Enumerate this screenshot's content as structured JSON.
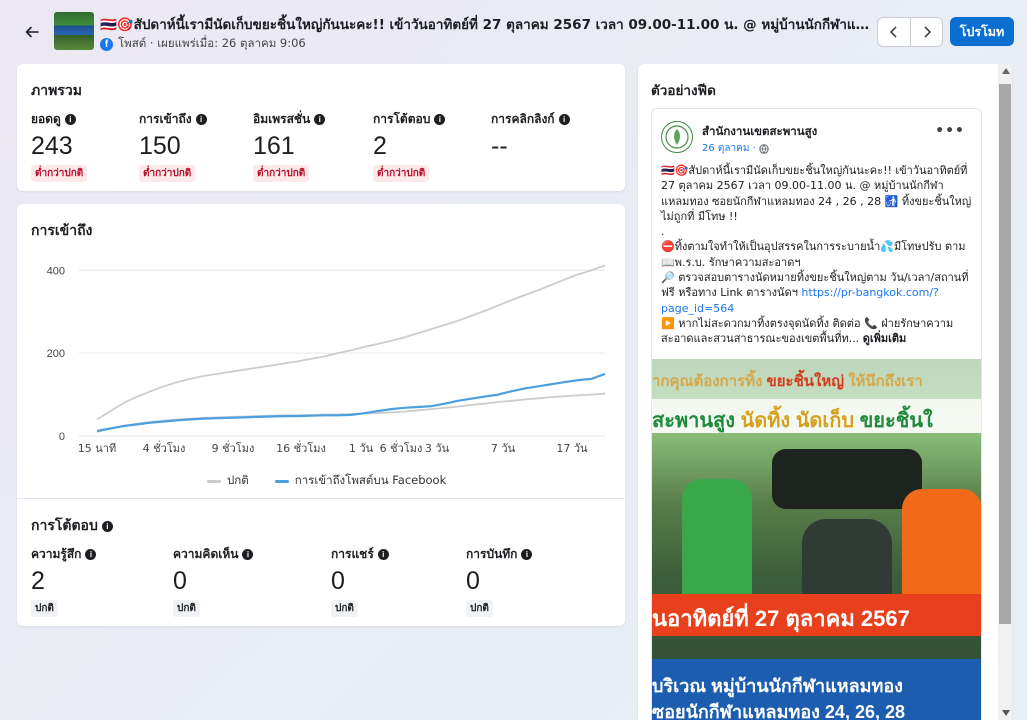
{
  "header": {
    "title": "🇹🇭🎯สัปดาห์นี้เรามีนัดเก็บขยะชิ้นใหญ่กันนะคะ!! เข้าวันอาทิตย์ที่ 27 ตุลาคม 2567 เวลา 09.00-11.00 น. @ หมู่บ้านนักกีฬาแหลมท...",
    "subtitle": "โพสต์ · เผยแพร่เมื่อ: 26 ตุลาคม 9:06",
    "promote_label": "โปรโมท",
    "icons": {
      "back": "back-arrow-icon",
      "prev": "chevron-left-icon",
      "next": "chevron-right-icon",
      "platform": "facebook-icon"
    }
  },
  "overview": {
    "title": "ภาพรวม",
    "metrics": [
      {
        "label": "ยอดดู",
        "value": "243",
        "status": "ต่ำกว่าปกติ"
      },
      {
        "label": "การเข้าถึง",
        "value": "150",
        "status": "ต่ำกว่าปกติ"
      },
      {
        "label": "อิมเพรสชั่น",
        "value": "161",
        "status": "ต่ำกว่าปกติ"
      },
      {
        "label": "การโต้ตอบ",
        "value": "2",
        "status": "ต่ำกว่าปกติ"
      },
      {
        "label": "การคลิกลิงก์",
        "value": "--",
        "status": ""
      }
    ]
  },
  "reach": {
    "title": "การเข้าถึง"
  },
  "chart_data": {
    "type": "line",
    "title": "การเข้าถึง",
    "xlabel": "",
    "ylabel": "",
    "ylim": [
      0,
      420
    ],
    "yticks": [
      0,
      200,
      400
    ],
    "x_tick_labels": [
      "15 นาที",
      "4 ชั่วโมง",
      "9 ชั่วโมง",
      "16 ชั่วโมง",
      "1 วัน",
      "6 ชั่วโมง",
      "3 วัน",
      "7 วัน",
      "17 วัน"
    ],
    "grid": true,
    "legend_position": "bottom",
    "colors": {
      "normal": "#cccccc",
      "post": "#4a9fe0"
    },
    "series": [
      {
        "name": "ปกติ",
        "values": [
          40,
          60,
          80,
          95,
          108,
          120,
          130,
          138,
          145,
          150,
          155,
          160,
          165,
          170,
          175,
          180,
          186,
          192,
          200,
          207,
          215,
          222,
          230,
          238,
          248,
          258,
          268,
          278,
          290,
          302,
          315,
          328,
          340,
          352,
          365,
          378,
          390,
          400,
          412
        ]
      },
      {
        "name": "",
        "values": [
          10,
          18,
          25,
          30,
          34,
          37,
          40,
          42,
          44,
          45,
          46,
          47,
          48,
          49,
          50,
          50,
          51,
          52,
          52,
          53,
          54,
          55,
          57,
          59,
          62,
          65,
          68,
          71,
          75,
          78,
          82,
          85,
          88,
          91,
          94,
          96,
          98,
          100,
          102
        ]
      },
      {
        "name": "การเข้าถึงโพสต์บน Facebook",
        "values": [
          12,
          18,
          24,
          28,
          32,
          35,
          38,
          40,
          42,
          43,
          44,
          45,
          46,
          47,
          48,
          48,
          49,
          50,
          50,
          51,
          55,
          60,
          65,
          68,
          70,
          72,
          78,
          85,
          90,
          95,
          100,
          108,
          115,
          120,
          125,
          130,
          135,
          138,
          150
        ]
      }
    ]
  },
  "engagement": {
    "title": "การโต้ตอบ",
    "metrics": [
      {
        "label": "ความรู้สึก",
        "value": "2",
        "status": "ปกติ"
      },
      {
        "label": "ความคิดเห็น",
        "value": "0",
        "status": "ปกติ"
      },
      {
        "label": "การแชร์",
        "value": "0",
        "status": "ปกติ"
      },
      {
        "label": "การบันทึก",
        "value": "0",
        "status": "ปกติ"
      }
    ]
  },
  "feed": {
    "title": "ตัวอย่างฟีด",
    "page_name": "สำนักงานเขตสะพานสูง",
    "date": "26 ตุลาคม ·",
    "more_label": "•••",
    "body": [
      "🇹🇭🎯สัปดาห์นี้เรามีนัดเก็บขยะชิ้นใหญ่กันนะคะ!! เข้าวันอาทิตย์ที่ 27 ตุลาคม 2567 เวลา 09.00-11.00 น. @ หมู่บ้านนักกีฬาแหลมทอง ซอยนักกีฬาแหลมทอง 24 , 26 , 28 🚮 ทิ้งขยะชิ้นใหญ่ไม่ถูกที่ มีโทษ !!",
      ".",
      "⛔ทิ้งตามใจทำให้เป็นอุปสรรคในการระบายน้ำ💦มีโทษปรับ ตาม📖พ.ร.บ. รักษาความสะอาดฯ",
      "🔎 ตรวจสอบตารางนัดหมายทิ้งขยะชิ้นใหญ่ตาม วัน/เวลา/สถานที่ ฟรี หรือทาง Link ตารางนัดฯ"
    ],
    "link": "https://pr-bangkok.com/?page_id=564",
    "body_last": "▶️ หากไม่สะดวกมาทิ้งตรงจุดนัดทิ้ง ติดต่อ 📞 ฝ่ายรักษาความสะอาดและสวนสาธารณะของเขตพื้นที่ท...",
    "see_more": "ดูเพิ่มเติม",
    "image_text": {
      "line1a": "ากคุณต้องการทิ้ง",
      "line1b": "ขยะชิ้นใหญ่",
      "line1c": "ให้นึกถึงเรา",
      "line2a": "สะพานสูง",
      "line2b": "นัดทิ้ง นัดเก็บ",
      "line2c": "ขยะชิ้นใ",
      "line3": "นอาทิตย์ที่ 27 ตุลาคม 2567",
      "line4": "บริเวณ หมู่บ้านนักกีฬาแหลมทอง",
      "line5": "ซอยนักกีฬาแหลมทอง 24, 26, 28"
    }
  }
}
